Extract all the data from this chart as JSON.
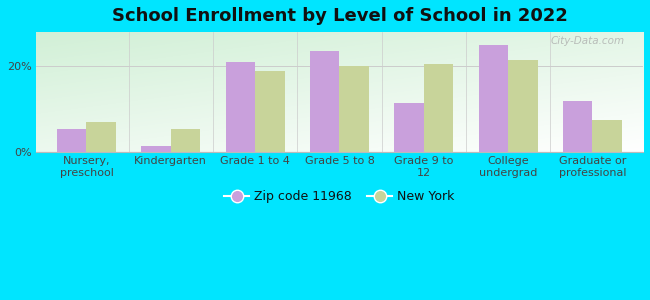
{
  "title": "School Enrollment by Level of School in 2022",
  "categories": [
    "Nursery,\npreschool",
    "Kindergarten",
    "Grade 1 to 4",
    "Grade 5 to 8",
    "Grade 9 to\n12",
    "College\nundergrad",
    "Graduate or\nprofessional"
  ],
  "zip_values": [
    5.5,
    1.5,
    21.0,
    23.5,
    11.5,
    25.0,
    12.0
  ],
  "ny_values": [
    7.0,
    5.5,
    19.0,
    20.0,
    20.5,
    21.5,
    7.5
  ],
  "zip_color": "#c9a0dc",
  "ny_color": "#c8d49a",
  "background_outer": "#00e5ff",
  "ylim": [
    0,
    28
  ],
  "yticks": [
    0,
    20
  ],
  "ytick_labels": [
    "0%",
    "20%"
  ],
  "bar_width": 0.35,
  "legend_zip_label": "Zip code 11968",
  "legend_ny_label": "New York",
  "watermark": "City-Data.com",
  "title_fontsize": 13,
  "axis_fontsize": 8,
  "gradient_colors_top": "#c8e6c9",
  "gradient_colors_bottom": "#f0fdf4"
}
